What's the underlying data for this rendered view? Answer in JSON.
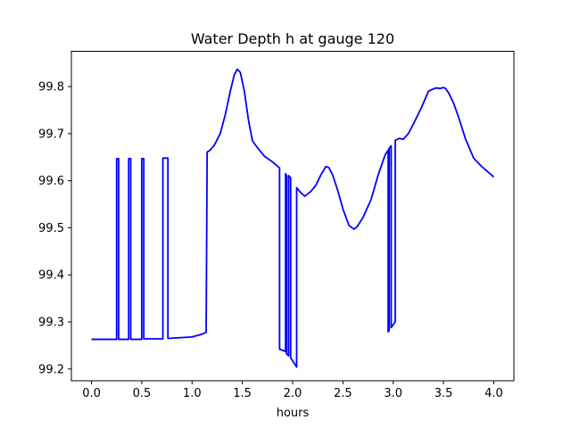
{
  "chart_data": {
    "type": "line",
    "title": "Water Depth h at gauge 120",
    "xlabel": "hours",
    "ylabel": "",
    "xlim": [
      -0.2,
      4.2
    ],
    "ylim": [
      99.175,
      99.875
    ],
    "xticks": [
      0.0,
      0.5,
      1.0,
      1.5,
      2.0,
      2.5,
      3.0,
      3.5,
      4.0
    ],
    "xtick_labels": [
      "0.0",
      "0.5",
      "1.0",
      "1.5",
      "2.0",
      "2.5",
      "3.0",
      "3.5",
      "4.0"
    ],
    "yticks": [
      99.2,
      99.3,
      99.4,
      99.5,
      99.6,
      99.7,
      99.8
    ],
    "ytick_labels": [
      "99.2",
      "99.3",
      "99.4",
      "99.5",
      "99.6",
      "99.7",
      "99.8"
    ],
    "grid": false,
    "series": [
      {
        "color": "#0000ff",
        "x": [
          0.0,
          0.25,
          0.25,
          0.27,
          0.27,
          0.37,
          0.37,
          0.39,
          0.39,
          0.5,
          0.5,
          0.52,
          0.52,
          0.71,
          0.71,
          0.76,
          0.76,
          1.0,
          1.1,
          1.14,
          1.15,
          1.18,
          1.22,
          1.28,
          1.33,
          1.38,
          1.42,
          1.45,
          1.48,
          1.52,
          1.56,
          1.6,
          1.65,
          1.72,
          1.8,
          1.87,
          1.87,
          1.93,
          1.93,
          1.94,
          1.94,
          1.96,
          1.96,
          1.98,
          1.98,
          2.04,
          2.04,
          2.08,
          2.12,
          2.18,
          2.23,
          2.28,
          2.33,
          2.36,
          2.4,
          2.45,
          2.5,
          2.56,
          2.61,
          2.64,
          2.7,
          2.78,
          2.85,
          2.92,
          2.95,
          2.95,
          2.96,
          2.96,
          2.98,
          2.98,
          3.02,
          3.02,
          3.06,
          3.1,
          3.15,
          3.2,
          3.28,
          3.35,
          3.42,
          3.47,
          3.5,
          3.52,
          3.55,
          3.6,
          3.65,
          3.72,
          3.8,
          3.88,
          4.0
        ],
        "y": [
          99.263,
          99.263,
          99.647,
          99.647,
          99.263,
          99.263,
          99.647,
          99.647,
          99.263,
          99.263,
          99.647,
          99.647,
          99.264,
          99.264,
          99.648,
          99.648,
          99.265,
          99.268,
          99.274,
          99.278,
          99.661,
          99.665,
          99.675,
          99.7,
          99.74,
          99.79,
          99.825,
          99.837,
          99.83,
          99.79,
          99.73,
          99.685,
          99.67,
          99.652,
          99.64,
          99.627,
          99.242,
          99.237,
          99.615,
          99.61,
          99.232,
          99.228,
          99.611,
          99.606,
          99.224,
          99.204,
          99.585,
          99.575,
          99.567,
          99.577,
          99.59,
          99.612,
          99.63,
          99.628,
          99.611,
          99.578,
          99.54,
          99.505,
          99.497,
          99.502,
          99.522,
          99.56,
          99.612,
          99.655,
          99.665,
          99.279,
          99.282,
          99.669,
          99.674,
          99.288,
          99.3,
          99.686,
          99.69,
          99.688,
          99.7,
          99.72,
          99.755,
          99.79,
          99.797,
          99.796,
          99.798,
          99.796,
          99.787,
          99.765,
          99.735,
          99.688,
          99.648,
          99.63,
          99.608
        ]
      }
    ]
  }
}
